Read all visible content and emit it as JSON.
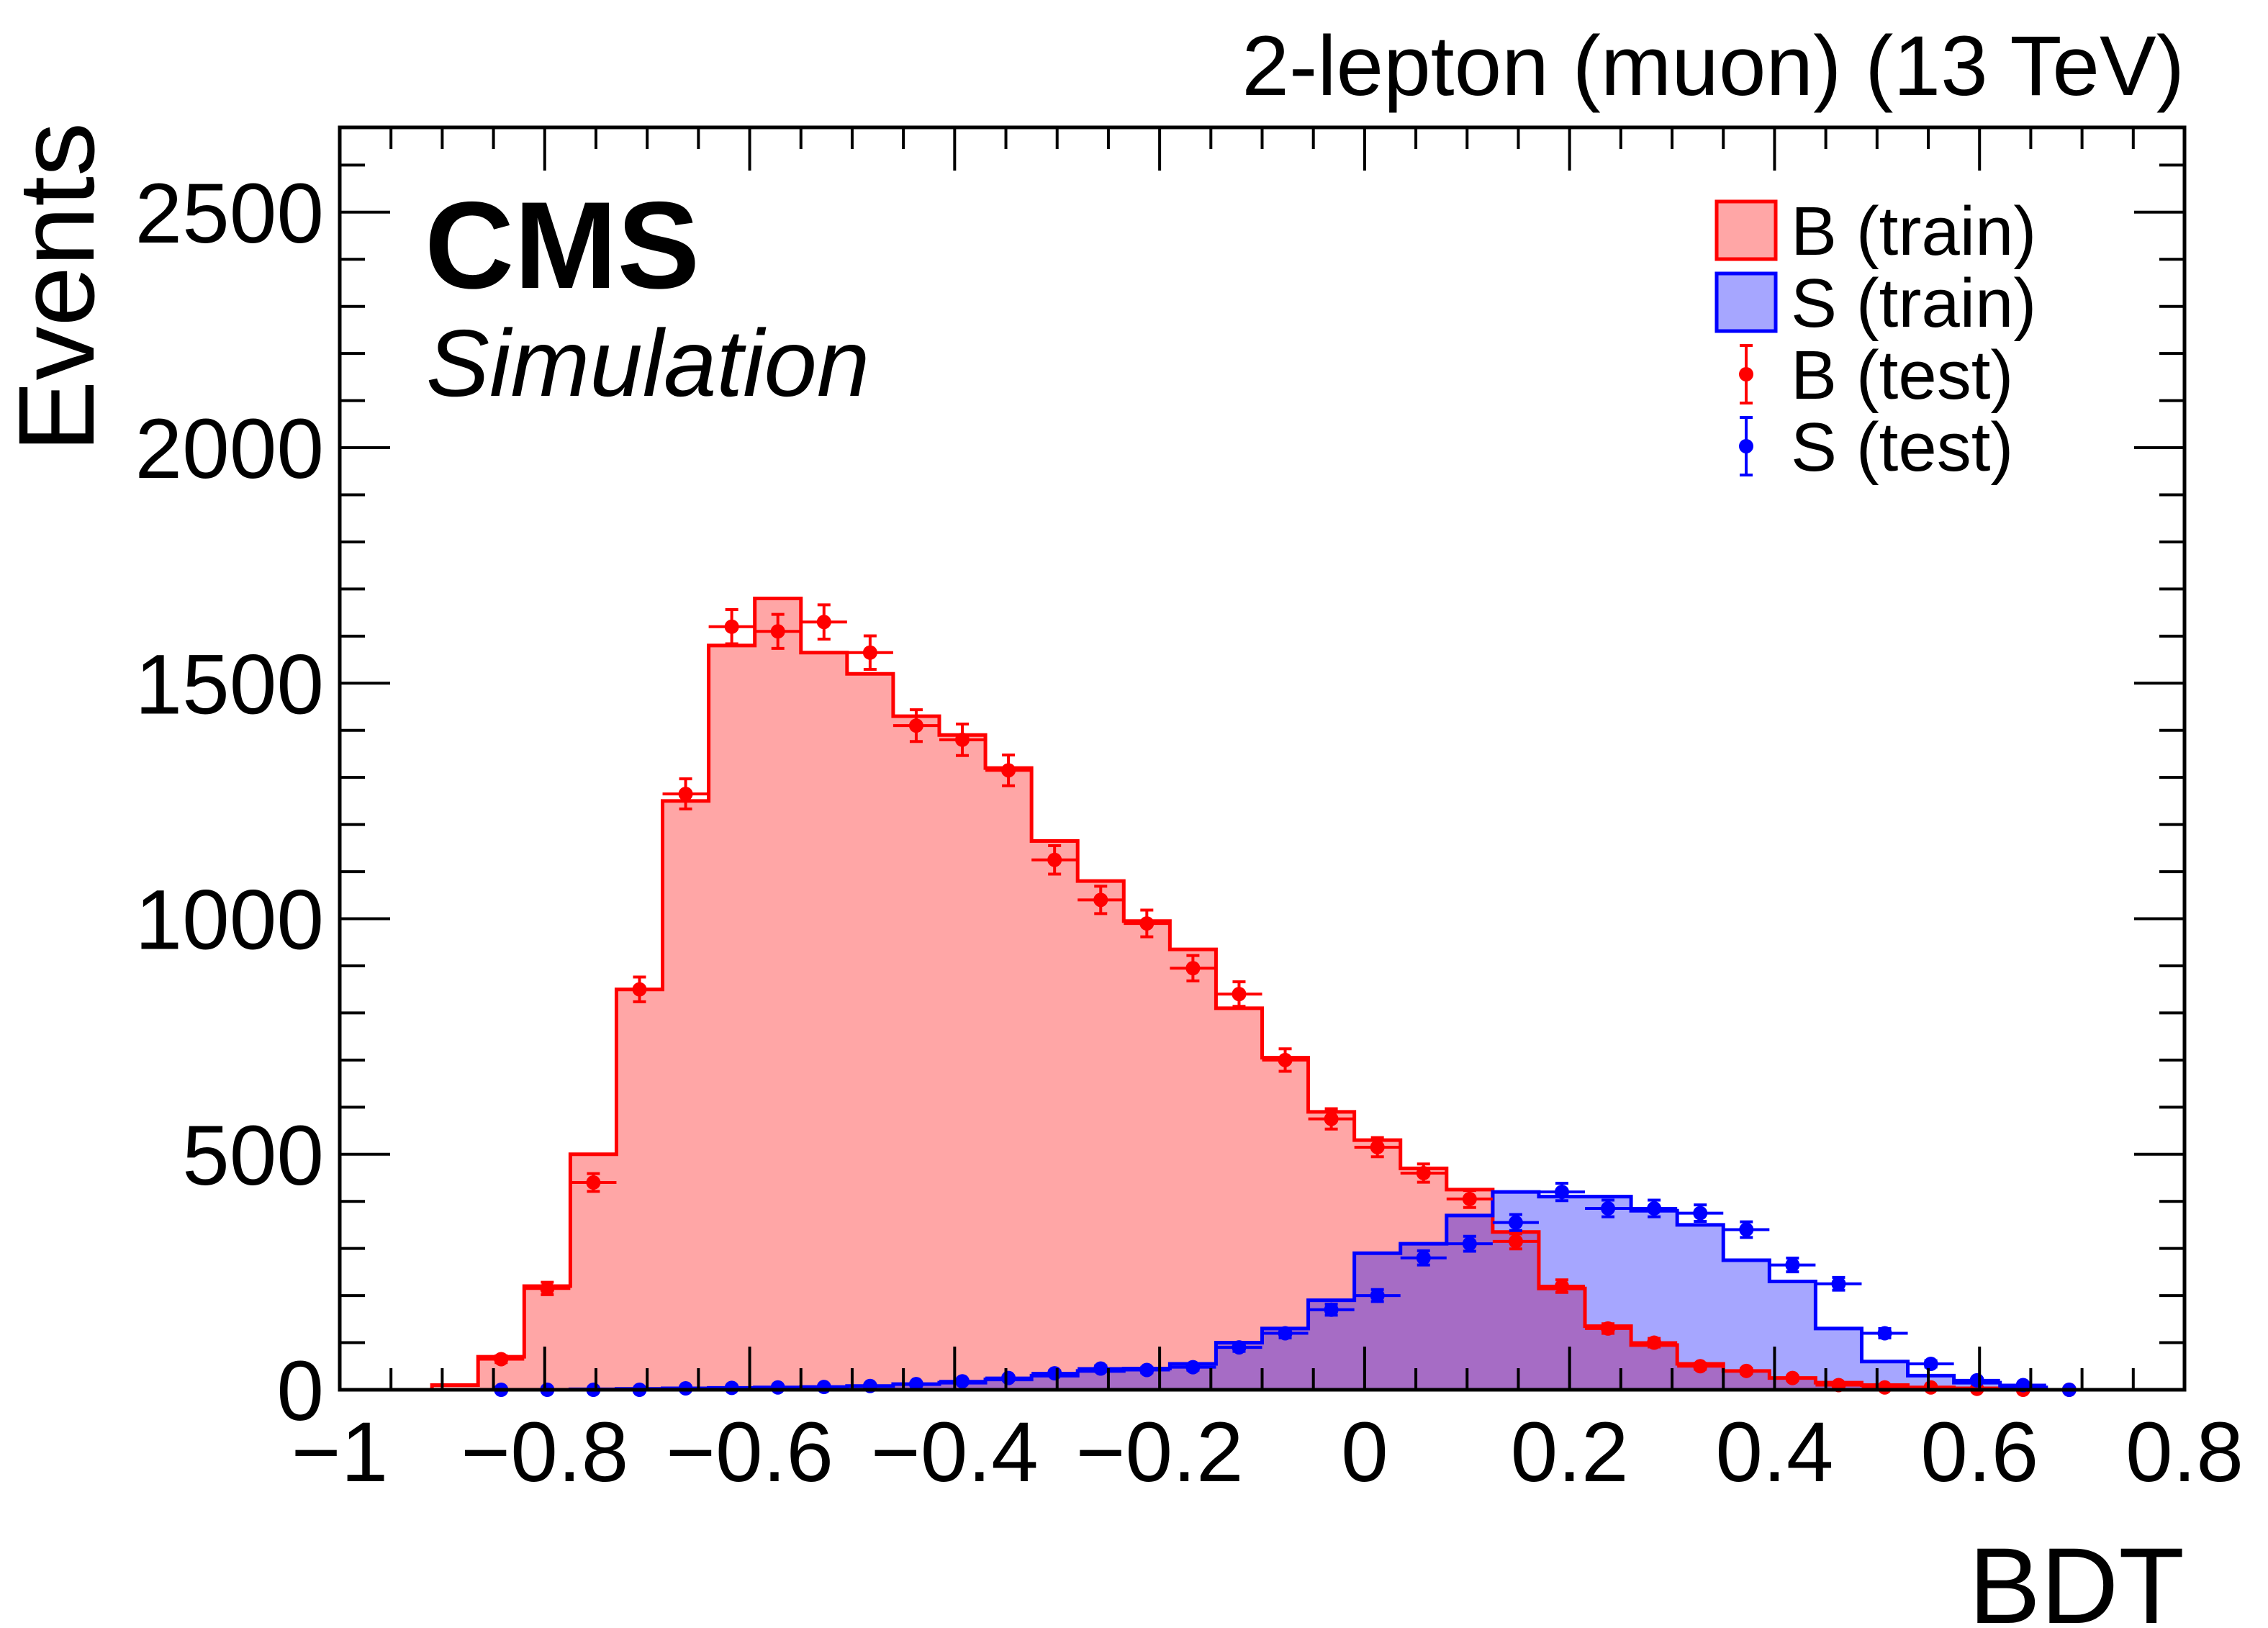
{
  "chart_data": {
    "type": "histogram",
    "title": "2-lepton (muon) (13 TeV)",
    "experiment": "CMS",
    "subtitle": "Simulation",
    "xlabel": "BDT",
    "ylabel": "Events",
    "xlim": [
      -1,
      0.8
    ],
    "ylim": [
      0,
      2680
    ],
    "x_ticks": [
      -1,
      -0.8,
      -0.6,
      -0.4,
      -0.2,
      0,
      0.2,
      0.4,
      0.6,
      0.8
    ],
    "x_tick_labels": [
      "−1",
      "−0.8",
      "−0.6",
      "−0.4",
      "−0.2",
      "0",
      "0.2",
      "0.4",
      "0.6",
      "0.8"
    ],
    "y_ticks": [
      0,
      500,
      1000,
      1500,
      2000,
      2500
    ],
    "y_tick_labels": [
      "0",
      "500",
      "1000",
      "1500",
      "2000",
      "2500"
    ],
    "bin_edges": [
      -1,
      -0.955,
      -0.91,
      -0.865,
      -0.82,
      -0.775,
      -0.73,
      -0.685,
      -0.64,
      -0.595,
      -0.55,
      -0.505,
      -0.46,
      -0.415,
      -0.37,
      -0.325,
      -0.28,
      -0.235,
      -0.19,
      -0.145,
      -0.1,
      -0.055,
      -0.01,
      0.035,
      0.08,
      0.125,
      0.17,
      0.215,
      0.26,
      0.305,
      0.35,
      0.395,
      0.44,
      0.485,
      0.53,
      0.575,
      0.62,
      0.665,
      0.71,
      0.755,
      0.8
    ],
    "series": [
      {
        "name": "B (train)",
        "style": "filled-histogram",
        "color": "#ff0000",
        "fill": "rgba(255,0,0,0.35)",
        "values": [
          0,
          0,
          10,
          70,
          220,
          500,
          850,
          1250,
          1580,
          1680,
          1565,
          1520,
          1430,
          1390,
          1320,
          1165,
          1080,
          995,
          935,
          810,
          705,
          590,
          530,
          470,
          425,
          335,
          215,
          135,
          95,
          55,
          40,
          25,
          15,
          10,
          5,
          3,
          2,
          0,
          0,
          0
        ]
      },
      {
        "name": "S (train)",
        "style": "filled-histogram",
        "color": "#0000ff",
        "fill": "rgba(0,0,255,0.35)",
        "values": [
          0,
          0,
          0,
          0,
          0,
          1,
          2,
          3,
          4,
          5,
          6,
          8,
          12,
          15,
          22,
          30,
          40,
          45,
          55,
          100,
          130,
          190,
          290,
          310,
          370,
          420,
          410,
          410,
          380,
          350,
          275,
          230,
          130,
          60,
          30,
          15,
          5,
          0,
          0,
          0
        ]
      },
      {
        "name": "B (test)",
        "style": "points-with-errors",
        "color": "#ff0000",
        "values": [
          0,
          0,
          10,
          65,
          215,
          440,
          850,
          1265,
          1620,
          1610,
          1630,
          1565,
          1410,
          1380,
          1315,
          1125,
          1040,
          990,
          895,
          840,
          700,
          575,
          515,
          460,
          405,
          315,
          220,
          130,
          100,
          50,
          40,
          25,
          10,
          5,
          5,
          2,
          0,
          0,
          0,
          0
        ]
      },
      {
        "name": "S (test)",
        "style": "points-with-errors",
        "color": "#0000ff",
        "values": [
          0,
          0,
          0,
          0,
          0,
          0,
          0,
          3,
          4,
          5,
          6,
          8,
          12,
          18,
          25,
          35,
          45,
          42,
          48,
          90,
          120,
          170,
          200,
          280,
          310,
          355,
          420,
          385,
          385,
          375,
          340,
          265,
          225,
          120,
          55,
          20,
          10,
          0,
          0,
          0
        ]
      }
    ],
    "legend": {
      "position": "top-right",
      "entries": [
        {
          "label": "B (train)",
          "kind": "box",
          "color": "#ff0000"
        },
        {
          "label": "S (train)",
          "kind": "box",
          "color": "#0000ff"
        },
        {
          "label": "B (test)",
          "kind": "marker",
          "color": "#ff0000"
        },
        {
          "label": "S (test)",
          "kind": "marker",
          "color": "#0000ff"
        }
      ]
    }
  }
}
